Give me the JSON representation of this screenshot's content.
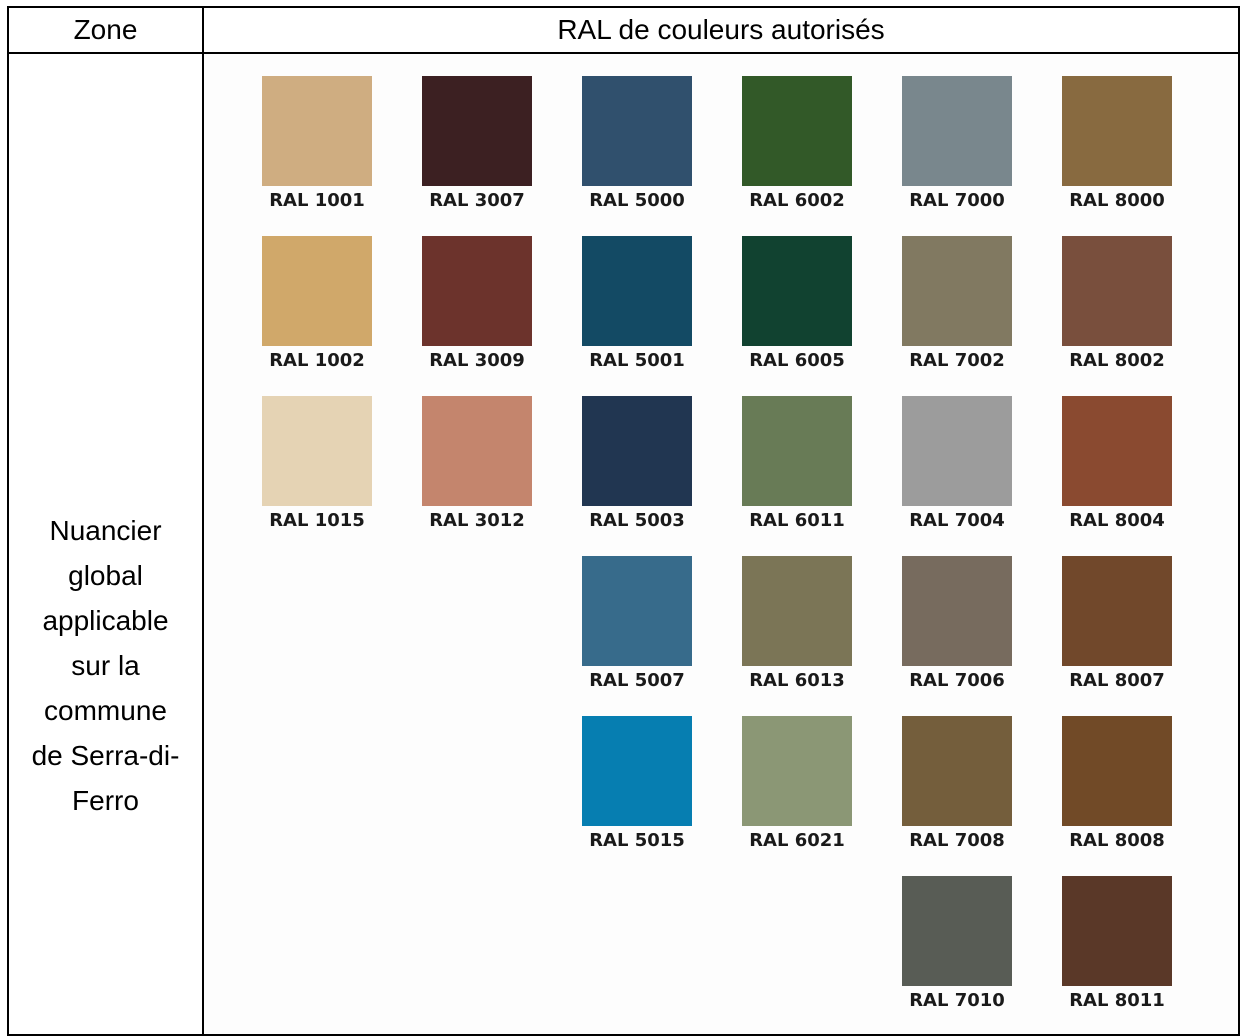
{
  "header": {
    "zone_label": "Zone",
    "ral_label": "RAL de couleurs autorisés"
  },
  "zone": {
    "lines": [
      "Nuancier",
      "global",
      "applicable",
      "sur la",
      "commune",
      "de Serra-di-",
      "Ferro"
    ]
  },
  "colors": [
    {
      "col": 0,
      "row": 0,
      "label": "RAL 1001",
      "hex": "#CFAD81"
    },
    {
      "col": 0,
      "row": 1,
      "label": "RAL 1002",
      "hex": "#D0A86A"
    },
    {
      "col": 0,
      "row": 2,
      "label": "RAL 1015",
      "hex": "#E5D3B4"
    },
    {
      "col": 1,
      "row": 0,
      "label": "RAL 3007",
      "hex": "#3C2022"
    },
    {
      "col": 1,
      "row": 1,
      "label": "RAL 3009",
      "hex": "#6C332C"
    },
    {
      "col": 1,
      "row": 2,
      "label": "RAL 3012",
      "hex": "#C4856D"
    },
    {
      "col": 2,
      "row": 0,
      "label": "RAL 5000",
      "hex": "#30506D"
    },
    {
      "col": 2,
      "row": 1,
      "label": "RAL 5001",
      "hex": "#134A64"
    },
    {
      "col": 2,
      "row": 2,
      "label": "RAL 5003",
      "hex": "#213651"
    },
    {
      "col": 2,
      "row": 3,
      "label": "RAL 5007",
      "hex": "#376B8B"
    },
    {
      "col": 2,
      "row": 4,
      "label": "RAL 5015",
      "hex": "#067EB1"
    },
    {
      "col": 3,
      "row": 0,
      "label": "RAL 6002",
      "hex": "#325928"
    },
    {
      "col": 3,
      "row": 1,
      "label": "RAL 6005",
      "hex": "#114230"
    },
    {
      "col": 3,
      "row": 2,
      "label": "RAL 6011",
      "hex": "#687B56"
    },
    {
      "col": 3,
      "row": 3,
      "label": "RAL 6013",
      "hex": "#7B7556"
    },
    {
      "col": 3,
      "row": 4,
      "label": "RAL 6021",
      "hex": "#8B9775"
    },
    {
      "col": 4,
      "row": 0,
      "label": "RAL 7000",
      "hex": "#79878D"
    },
    {
      "col": 4,
      "row": 1,
      "label": "RAL 7002",
      "hex": "#817961"
    },
    {
      "col": 4,
      "row": 2,
      "label": "RAL 7004",
      "hex": "#9C9C9C"
    },
    {
      "col": 4,
      "row": 3,
      "label": "RAL 7006",
      "hex": "#776B5E"
    },
    {
      "col": 4,
      "row": 4,
      "label": "RAL 7008",
      "hex": "#745E3C"
    },
    {
      "col": 4,
      "row": 5,
      "label": "RAL 7010",
      "hex": "#585C55"
    },
    {
      "col": 5,
      "row": 0,
      "label": "RAL 8000",
      "hex": "#886A40"
    },
    {
      "col": 5,
      "row": 1,
      "label": "RAL 8002",
      "hex": "#794F3D"
    },
    {
      "col": 5,
      "row": 2,
      "label": "RAL 8004",
      "hex": "#8A4A30"
    },
    {
      "col": 5,
      "row": 3,
      "label": "RAL 8007",
      "hex": "#71482B"
    },
    {
      "col": 5,
      "row": 4,
      "label": "RAL 8008",
      "hex": "#714A27"
    },
    {
      "col": 5,
      "row": 5,
      "label": "RAL 8011",
      "hex": "#5A3828"
    }
  ]
}
